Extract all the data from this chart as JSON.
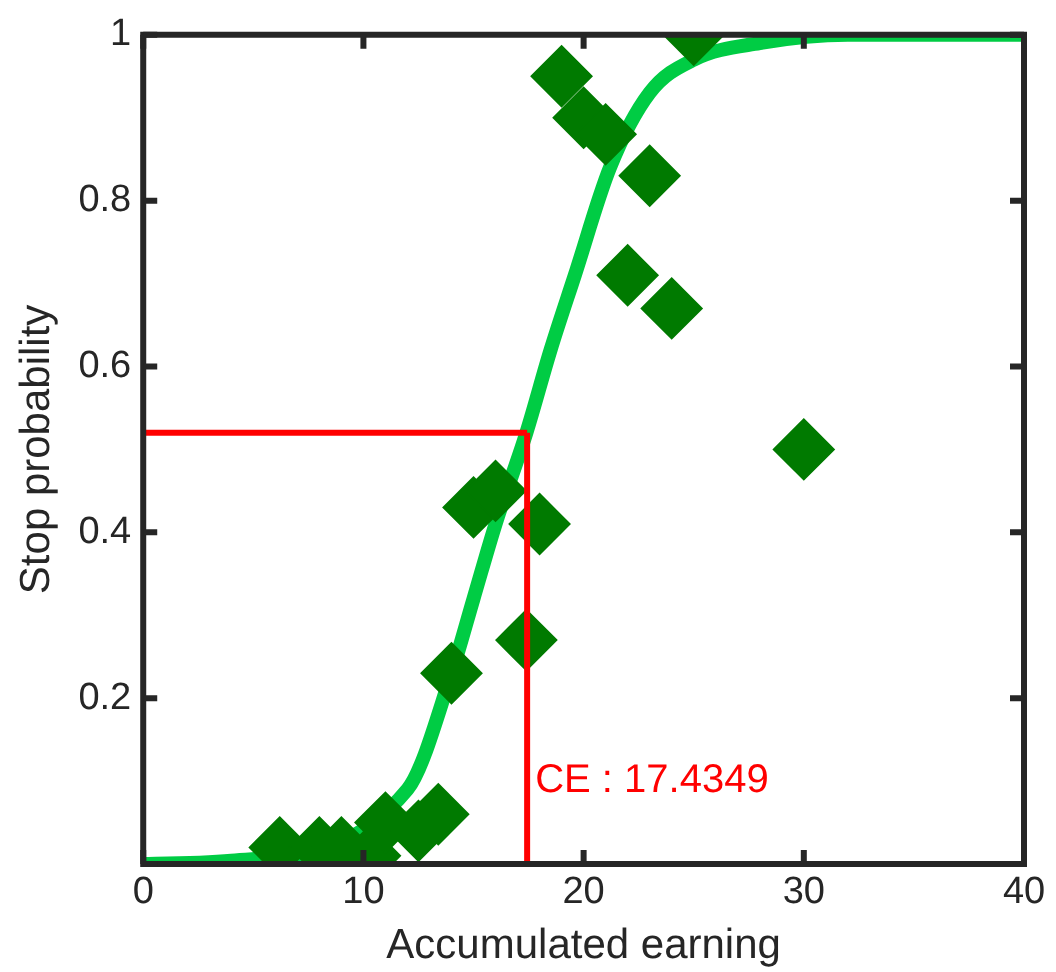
{
  "chart_data": {
    "type": "scatter",
    "xlabel": "Accumulated earning",
    "ylabel": "Stop probability",
    "xlim": [
      0,
      40
    ],
    "ylim": [
      0,
      1
    ],
    "xticks": [
      0,
      10,
      20,
      30,
      40
    ],
    "yticks": [
      {
        "value": 0,
        "label": null
      },
      0.2,
      0.4,
      0.6,
      0.8,
      1
    ],
    "marker": "diamond",
    "legend": false,
    "grid": false,
    "series": [
      {
        "type": "scatter",
        "color": "#007a00",
        "x": [
          6.2,
          8,
          9,
          10.3,
          11,
          12.5,
          13.4,
          14,
          15,
          16,
          17.4,
          18,
          19,
          20,
          21,
          22,
          23,
          24,
          25,
          30
        ],
        "values": [
          0.02,
          0.02,
          0.02,
          0.01,
          0.05,
          0.04,
          0.06,
          0.23,
          0.43,
          0.45,
          0.27,
          0.41,
          0.95,
          0.9,
          0.88,
          0.71,
          0.83,
          0.67,
          1.0,
          0.5
        ]
      },
      {
        "type": "line",
        "color": "#00cc44",
        "marker": "none",
        "x": [
          0,
          4,
          12,
          14,
          15,
          16,
          17.4,
          18.5,
          19.6,
          21.2,
          23,
          25,
          28,
          32,
          40
        ],
        "values": [
          0,
          0.004,
          0.09,
          0.23,
          0.32,
          0.41,
          0.52,
          0.62,
          0.71,
          0.84,
          0.93,
          0.97,
          0.99,
          1,
          1
        ]
      }
    ],
    "ref_lines": [
      {
        "axis": "x",
        "value": 17.4349,
        "label": "CE : 17.4349",
        "color": "#ff0000"
      },
      {
        "axis": "y",
        "value": 0.52,
        "color": "#ff0000"
      }
    ]
  }
}
